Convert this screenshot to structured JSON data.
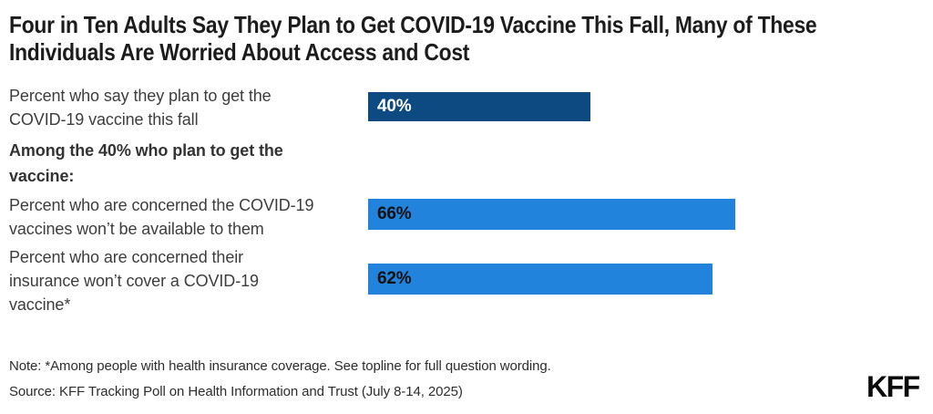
{
  "chart_data": {
    "type": "bar",
    "orientation": "horizontal",
    "title": "Four in Ten Adults Say They Plan to Get COVID-19 Vaccine This Fall, Many of These\nIndividuals Are Worried About Access and Cost",
    "group_heading": "Among the 40% who plan to get the\nvaccine:",
    "categories": [
      "Percent who say they plan to get the\nCOVID-19 vaccine this fall",
      "Percent who are concerned the COVID-19\nvaccines won’t be available to them",
      "Percent who are concerned their\ninsurance won’t cover a COVID-19\nvaccine*"
    ],
    "values": [
      40,
      66,
      62
    ],
    "value_labels": [
      "40%",
      "66%",
      "62%"
    ],
    "xlim": [
      0,
      100
    ],
    "grid": false,
    "legend": "none",
    "bar_colors": [
      "#0C4A81",
      "#2183DB",
      "#2183DB"
    ],
    "value_label_colors": [
      "#FFFFFF",
      "#111111",
      "#111111"
    ]
  },
  "footer": {
    "note": "Note: *Among people with health insurance coverage. See topline for full question wording.",
    "source": "Source: KFF Tracking Poll on Health Information and Trust (July 8-14, 2025)",
    "logo": "KFF"
  }
}
